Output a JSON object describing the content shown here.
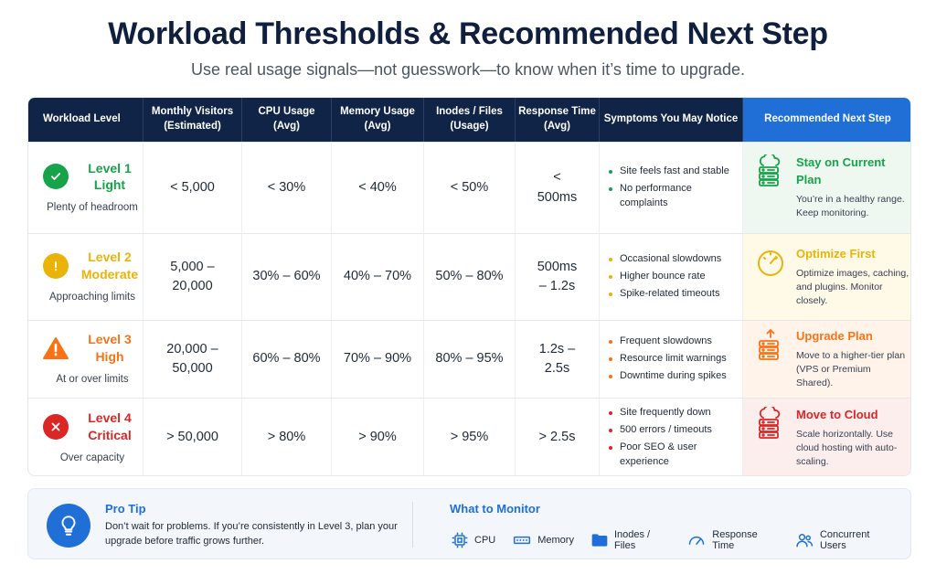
{
  "header": {
    "title": "Workload Thresholds & Recommended Next Step",
    "subtitle": "Use real usage signals—not guesswork—to know when it’s time to upgrade."
  },
  "table": {
    "columns": [
      "Workload Level",
      "Monthly Visitors (Estimated)",
      "CPU Usage (Avg)",
      "Memory Usage (Avg)",
      "Inodes / Files (Usage)",
      "Response Time (Avg)",
      "Symptoms You May Notice",
      "Recommended Next Step"
    ],
    "rows": [
      {
        "level_name": "Level 1 Light",
        "level_desc": "Plenty of headroom",
        "level_icon": "check-icon",
        "color": "#16a34a",
        "visitors": "< 5,000",
        "cpu": "< 30%",
        "memory": "< 40%",
        "inodes": "< 50%",
        "response": "< 500ms",
        "symptoms": [
          "Site feels fast and stable",
          "No performance complaints"
        ],
        "rec_title": "Stay on Current Plan",
        "rec_body": "You’re in a healthy range. Keep monitoring.",
        "rec_icon": "cloud-server-icon",
        "rec_bg": "#eef8f1"
      },
      {
        "level_name": "Level 2 Moderate",
        "level_desc": "Approaching limits",
        "level_icon": "exclamation-icon",
        "color": "#eab308",
        "visitors": "5,000 – 20,000",
        "cpu": "30% – 60%",
        "memory": "40% – 70%",
        "inodes": "50% – 80%",
        "response": "500ms – 1.2s",
        "symptoms": [
          "Occasional slowdowns",
          "Higher bounce rate",
          "Spike-related timeouts"
        ],
        "rec_title": "Optimize First",
        "rec_body": "Optimize images, caching, and plugins. Monitor closely.",
        "rec_icon": "gauge-icon",
        "rec_bg": "#fff9e8"
      },
      {
        "level_name": "Level 3 High",
        "level_desc": "At or over limits",
        "level_icon": "warning-icon",
        "color": "#f97316",
        "visitors": "20,000 – 50,000",
        "cpu": "60% – 80%",
        "memory": "70% – 90%",
        "inodes": "80% – 95%",
        "response": "1.2s – 2.5s",
        "symptoms": [
          "Frequent slowdowns",
          "Resource limit warnings",
          "Downtime during spikes"
        ],
        "rec_title": "Upgrade Plan",
        "rec_body": "Move to a higher-tier plan (VPS or Premium Shared).",
        "rec_icon": "server-upgrade-icon",
        "rec_bg": "#fff3ea"
      },
      {
        "level_name": "Level 4 Critical",
        "level_desc": "Over capacity",
        "level_icon": "x-icon",
        "color": "#dc2626",
        "visitors": "> 50,000",
        "cpu": "> 80%",
        "memory": "> 90%",
        "inodes": "> 95%",
        "response": "> 2.5s",
        "symptoms": [
          "Site frequently down",
          "500 errors / timeouts",
          "Poor SEO & user experience"
        ],
        "rec_title": "Move to Cloud",
        "rec_body": "Scale horizontally. Use cloud hosting with auto-scaling.",
        "rec_icon": "cloud-server-icon",
        "rec_bg": "#fdeeee"
      }
    ]
  },
  "footer": {
    "tip_title": "Pro Tip",
    "tip_body": "Don’t wait for problems. If you’re consistently in Level 3, plan your upgrade before traffic grows further.",
    "tip_icon": "lightbulb-icon",
    "monitor_title": "What to Monitor",
    "monitor_items": [
      {
        "label": "CPU",
        "icon": "cpu-icon"
      },
      {
        "label": "Memory",
        "icon": "memory-icon"
      },
      {
        "label": "Inodes / Files",
        "icon": "folder-icon"
      },
      {
        "label": "Response Time",
        "icon": "speedometer-icon"
      },
      {
        "label": "Concurrent Users",
        "icon": "users-icon"
      }
    ]
  }
}
